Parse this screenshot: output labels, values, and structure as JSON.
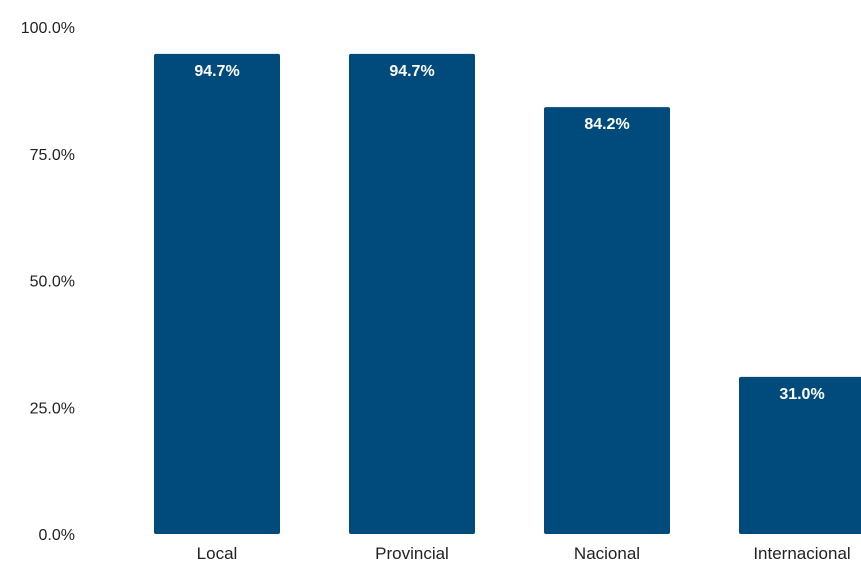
{
  "chart_data": {
    "type": "bar",
    "categories": [
      "Local",
      "Provincial",
      "Nacional",
      "Internacional"
    ],
    "values": [
      94.7,
      94.7,
      84.2,
      31.0
    ],
    "data_labels": [
      "94.7%",
      "94.7%",
      "84.2%",
      "31.0%"
    ],
    "yticks": [
      0,
      25,
      50,
      75,
      100
    ],
    "ytick_labels": [
      "0.0%",
      "25.0%",
      "50.0%",
      "75.0%",
      "100.0%"
    ],
    "ylim": [
      0,
      100
    ],
    "grid": false,
    "legend": "none",
    "bar_color": "#004b7c"
  }
}
